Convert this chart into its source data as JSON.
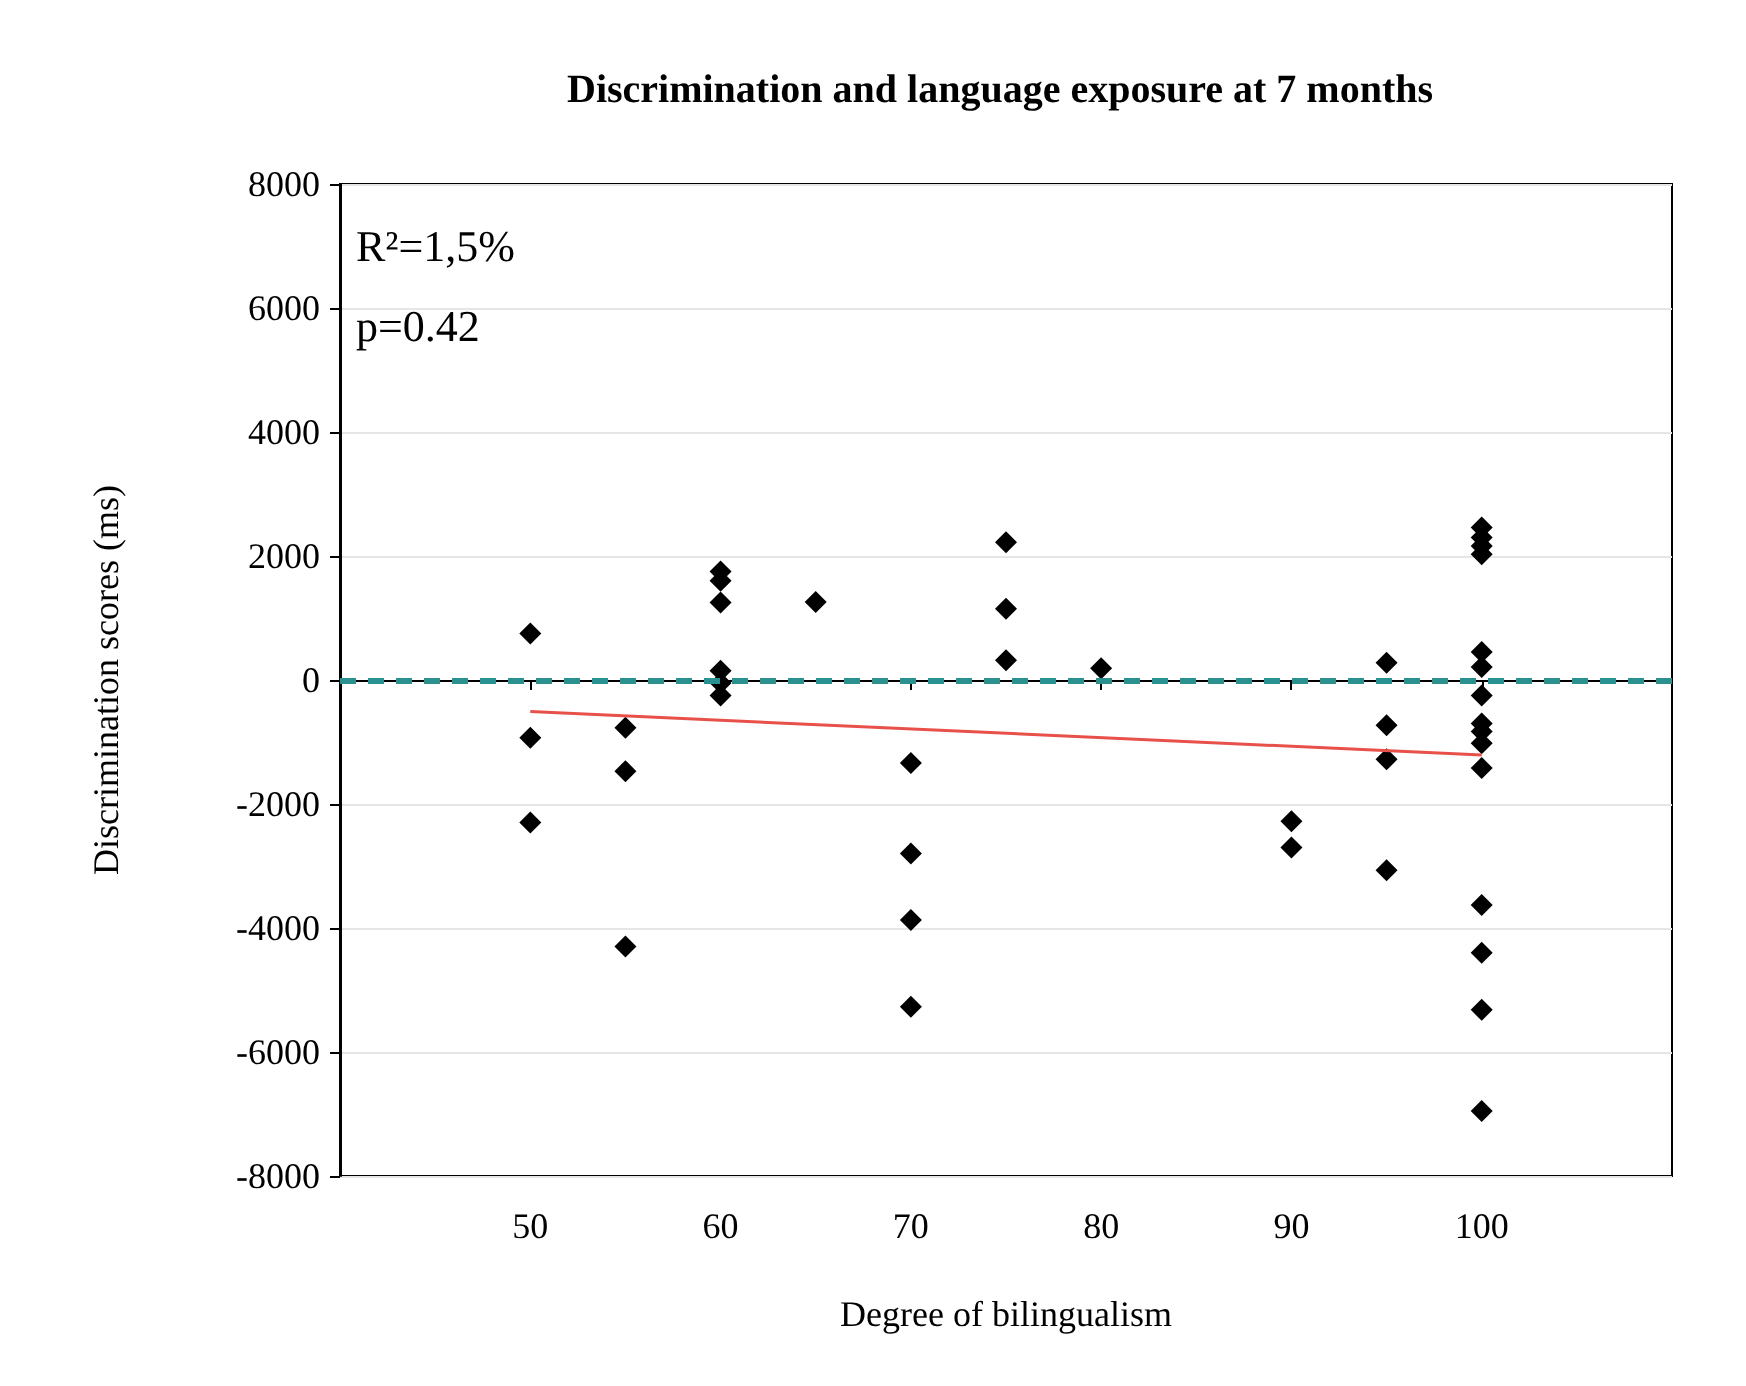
{
  "chart_data": {
    "type": "scatter",
    "title": "Discrimination and language exposure at 7 months",
    "xlabel": "Degree of bilingualism",
    "ylabel": "Discrimination scores (ms)",
    "annotations": [
      "R²=1,5%",
      "p=0.42"
    ],
    "series": [
      {
        "type": "scatter",
        "color": "#000000",
        "marker": "diamond",
        "x": [
          50,
          50,
          50,
          55,
          55,
          55,
          60,
          60,
          60,
          60,
          60,
          60,
          65,
          70,
          70,
          70,
          70,
          75,
          75,
          75,
          80,
          90,
          90,
          95,
          95,
          95,
          95,
          100,
          100,
          100,
          100,
          100,
          100,
          100,
          100,
          100,
          100,
          100,
          100,
          100,
          100,
          100
        ],
        "values": [
          750,
          -930,
          -2300,
          -770,
          -1470,
          -4300,
          1750,
          1600,
          1250,
          150,
          -50,
          -250,
          1260,
          -1340,
          -2800,
          -3870,
          -5270,
          2220,
          1150,
          320,
          190,
          -2280,
          -2700,
          280,
          -730,
          -1280,
          -3070,
          2460,
          2300,
          2160,
          2030,
          450,
          210,
          -250,
          -700,
          -830,
          -1020,
          -1420,
          -3630,
          -4400,
          -5320,
          -6950
        ]
      },
      {
        "type": "line",
        "color": "#e8504a",
        "marker": "none",
        "line_style": "solid",
        "x": [
          50,
          100
        ],
        "values": [
          -510,
          -1210
        ]
      }
    ],
    "xlim": [
      40,
      110
    ],
    "xticks": [
      50,
      60,
      70,
      80,
      90,
      100
    ],
    "ylim": [
      -8000,
      8000
    ],
    "yticks": [
      -8000,
      -6000,
      -4000,
      -2000,
      0,
      2000,
      4000,
      6000,
      8000
    ],
    "grid": "y",
    "ref_lines": [
      {
        "axis": "y",
        "value": 0,
        "color": "#2a9090",
        "line_style": "dashed"
      }
    ]
  }
}
